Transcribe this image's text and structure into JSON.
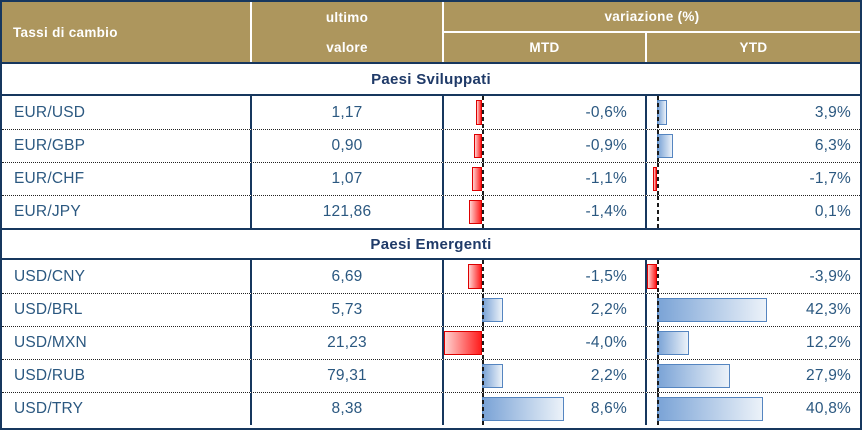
{
  "table": {
    "header": {
      "title": "Tassi di cambio",
      "value_col_line1": "ultimo",
      "value_col_line2": "valore",
      "variation": "variazione (%)",
      "mtd": "MTD",
      "ytd": "YTD"
    },
    "sections": [
      {
        "title": "Paesi Sviluppati",
        "rows": [
          {
            "pair": "EUR/USD",
            "value": "1,17",
            "mtd": "-0,6%",
            "mtd_num": -0.6,
            "ytd": "3,9%",
            "ytd_num": 3.9
          },
          {
            "pair": "EUR/GBP",
            "value": "0,90",
            "mtd": "-0,9%",
            "mtd_num": -0.9,
            "ytd": "6,3%",
            "ytd_num": 6.3
          },
          {
            "pair": "EUR/CHF",
            "value": "1,07",
            "mtd": "-1,1%",
            "mtd_num": -1.1,
            "ytd": "-1,7%",
            "ytd_num": -1.7
          },
          {
            "pair": "EUR/JPY",
            "value": "121,86",
            "mtd": "-1,4%",
            "mtd_num": -1.4,
            "ytd": "0,1%",
            "ytd_num": 0.1
          }
        ]
      },
      {
        "title": "Paesi Emergenti",
        "rows": [
          {
            "pair": "USD/CNY",
            "value": "6,69",
            "mtd": "-1,5%",
            "mtd_num": -1.5,
            "ytd": "-3,9%",
            "ytd_num": -3.9
          },
          {
            "pair": "USD/BRL",
            "value": "5,73",
            "mtd": "2,2%",
            "mtd_num": 2.2,
            "ytd": "42,3%",
            "ytd_num": 42.3
          },
          {
            "pair": "USD/MXN",
            "value": "21,23",
            "mtd": "-4,0%",
            "mtd_num": -4.0,
            "ytd": "12,2%",
            "ytd_num": 12.2
          },
          {
            "pair": "USD/RUB",
            "value": "79,31",
            "mtd": "2,2%",
            "mtd_num": 2.2,
            "ytd": "27,9%",
            "ytd_num": 27.9
          },
          {
            "pair": "USD/TRY",
            "value": "8,38",
            "mtd": "8,6%",
            "mtd_num": 8.6,
            "ytd": "40,8%",
            "ytd_num": 40.8
          }
        ]
      }
    ]
  },
  "colors": {
    "tan": "#AD965D",
    "navy": "#17375E",
    "header_text": "#FFFFFF",
    "text_blue": "#2B5880",
    "title_blue": "#1F3A68",
    "axis": "#1A1A1A",
    "bar_red_border": "#DD0000",
    "bar_red_solid": "#FF1C1C",
    "bar_red_light": "#FFD2D0",
    "bar_blue_border": "#5585C0",
    "bar_blue_solid": "#7AA3D6",
    "bar_blue_light": "#ECF2F9"
  },
  "chart_data": {
    "type": "table",
    "title": "Tassi di cambio",
    "columns": [
      "Tassi di cambio",
      "ultimo valore",
      "variazione (%) MTD",
      "variazione (%) YTD"
    ],
    "sections": [
      {
        "name": "Paesi Sviluppati",
        "rows": [
          {
            "pair": "EUR/USD",
            "last_value": 1.17,
            "mtd_pct": -0.6,
            "ytd_pct": 3.9
          },
          {
            "pair": "EUR/GBP",
            "last_value": 0.9,
            "mtd_pct": -0.9,
            "ytd_pct": 6.3
          },
          {
            "pair": "EUR/CHF",
            "last_value": 1.07,
            "mtd_pct": -1.1,
            "ytd_pct": -1.7
          },
          {
            "pair": "EUR/JPY",
            "last_value": 121.86,
            "mtd_pct": -1.4,
            "ytd_pct": 0.1
          }
        ]
      },
      {
        "name": "Paesi Emergenti",
        "rows": [
          {
            "pair": "USD/CNY",
            "last_value": 6.69,
            "mtd_pct": -1.5,
            "ytd_pct": -3.9
          },
          {
            "pair": "USD/BRL",
            "last_value": 5.73,
            "mtd_pct": 2.2,
            "ytd_pct": 42.3
          },
          {
            "pair": "USD/MXN",
            "last_value": 21.23,
            "mtd_pct": -4.0,
            "ytd_pct": 12.2
          },
          {
            "pair": "USD/RUB",
            "last_value": 79.31,
            "mtd_pct": 2.2,
            "ytd_pct": 27.9
          },
          {
            "pair": "USD/TRY",
            "last_value": 8.38,
            "mtd_pct": 8.6,
            "ytd_pct": 40.8
          }
        ]
      }
    ],
    "bar_visualization": {
      "style": "excel-data-bars",
      "negative_color": "red-gradient",
      "positive_color": "blue-gradient",
      "mtd_axis_range": [
        -4.0,
        8.6
      ],
      "ytd_axis_range": [
        -3.9,
        42.3
      ]
    }
  }
}
